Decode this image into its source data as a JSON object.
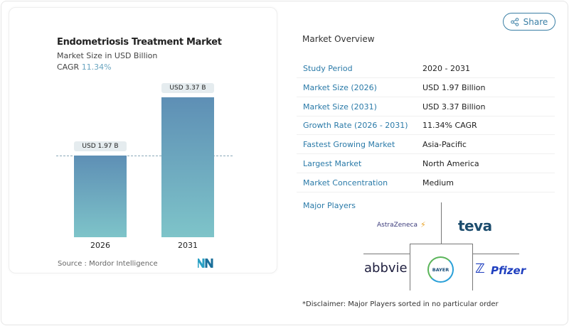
{
  "chart_data": {
    "type": "bar",
    "title": "Endometriosis Treatment Market",
    "subtitle": "Market Size in USD Billion",
    "cagr_label": "CAGR",
    "cagr_value": "11.34%",
    "categories": [
      "2026",
      "2031"
    ],
    "values": [
      1.97,
      3.37
    ],
    "data_labels": [
      "USD 1.97 B",
      "USD 3.37 B"
    ],
    "colors": {
      "bar_top": "#5e8fb5",
      "bar_bottom": "#7ec4c9"
    },
    "reference_line": 1.97,
    "source": "Source :  Mordor Intelligence"
  },
  "share_label": "Share",
  "overview": {
    "title": "Market Overview",
    "rows": [
      {
        "k": "Study Period",
        "v": "2020 - 2031"
      },
      {
        "k": "Market Size (2026)",
        "v": "USD 1.97 Billion"
      },
      {
        "k": "Market Size (2031)",
        "v": "USD 3.37 Billion"
      },
      {
        "k": "Growth Rate (2026 - 2031)",
        "v": "11.34% CAGR"
      },
      {
        "k": "Fastest Growing Market",
        "v": "Asia-Pacific"
      },
      {
        "k": "Largest Market",
        "v": "North America"
      },
      {
        "k": "Market Concentration",
        "v": "Medium"
      }
    ]
  },
  "players": {
    "title": "Major Players",
    "logos": [
      "AstraZeneca",
      "teva",
      "abbvie",
      "BAYER",
      "Pfizer"
    ],
    "disclaimer": "*Disclaimer: Major Players sorted in no particular order"
  }
}
